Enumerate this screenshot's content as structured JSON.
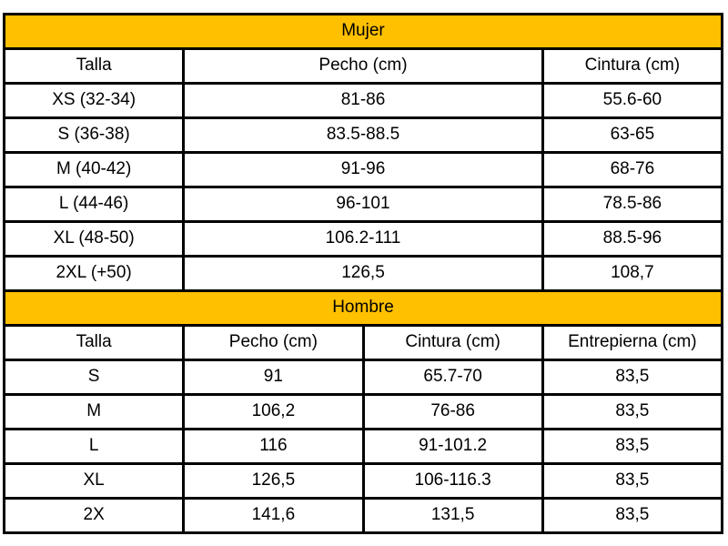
{
  "colors": {
    "section_header_bg": "#FFC000",
    "border": "#000000",
    "cell_bg": "#FFFFFF",
    "text": "#000000",
    "page_bg": "#FFFFFF"
  },
  "chart_data": [
    {
      "type": "table",
      "title": "Mujer",
      "columns": [
        "Talla",
        "Pecho (cm)",
        "Cintura (cm)"
      ],
      "rows": [
        [
          "XS (32-34)",
          "81-86",
          "55.6-60"
        ],
        [
          "S (36-38)",
          "83.5-88.5",
          "63-65"
        ],
        [
          "M (40-42)",
          "91-96",
          "68-76"
        ],
        [
          "L (44-46)",
          "96-101",
          "78.5-86"
        ],
        [
          "XL (48-50)",
          "106.2-111",
          "88.5-96"
        ],
        [
          "2XL (+50)",
          "126,5",
          "108,7"
        ]
      ]
    },
    {
      "type": "table",
      "title": "Hombre",
      "columns": [
        "Talla",
        "Pecho (cm)",
        "Cintura (cm)",
        "Entrepierna (cm)"
      ],
      "rows": [
        [
          "S",
          "91",
          "65.7-70",
          "83,5"
        ],
        [
          "M",
          "106,2",
          "76-86",
          "83,5"
        ],
        [
          "L",
          "116",
          "91-101.2",
          "83,5"
        ],
        [
          "XL",
          "126,5",
          "106-116.3",
          "83,5"
        ],
        [
          "2X",
          "141,6",
          "131,5",
          "83,5"
        ]
      ]
    }
  ]
}
